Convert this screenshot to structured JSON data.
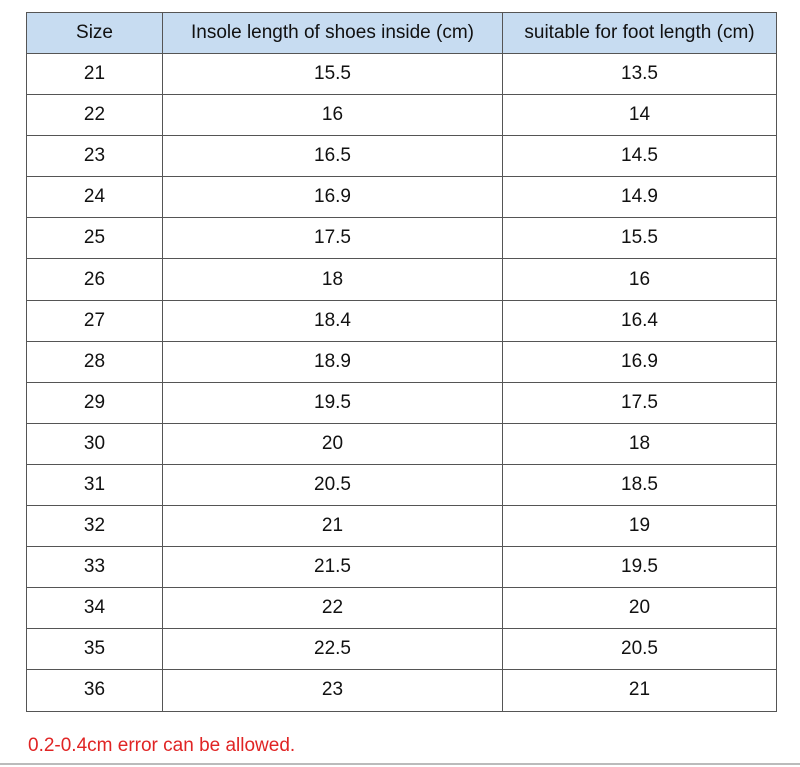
{
  "table": {
    "headers": [
      "Size",
      "Insole length of shoes inside (cm)",
      "suitable for foot length (cm)"
    ],
    "rows": [
      [
        "21",
        "15.5",
        "13.5"
      ],
      [
        "22",
        "16",
        "14"
      ],
      [
        "23",
        "16.5",
        "14.5"
      ],
      [
        "24",
        "16.9",
        "14.9"
      ],
      [
        "25",
        "17.5",
        "15.5"
      ],
      [
        "26",
        "18",
        "16"
      ],
      [
        "27",
        "18.4",
        "16.4"
      ],
      [
        "28",
        "18.9",
        "16.9"
      ],
      [
        "29",
        "19.5",
        "17.5"
      ],
      [
        "30",
        "20",
        "18"
      ],
      [
        "31",
        "20.5",
        "18.5"
      ],
      [
        "32",
        "21",
        "19"
      ],
      [
        "33",
        "21.5",
        "19.5"
      ],
      [
        "34",
        "22",
        "20"
      ],
      [
        "35",
        "22.5",
        "20.5"
      ],
      [
        "36",
        "23",
        "21"
      ]
    ],
    "header_bg": "#c7dcf1"
  },
  "note": {
    "text": "0.2-0.4cm error can be allowed.",
    "color": "#e02424"
  }
}
